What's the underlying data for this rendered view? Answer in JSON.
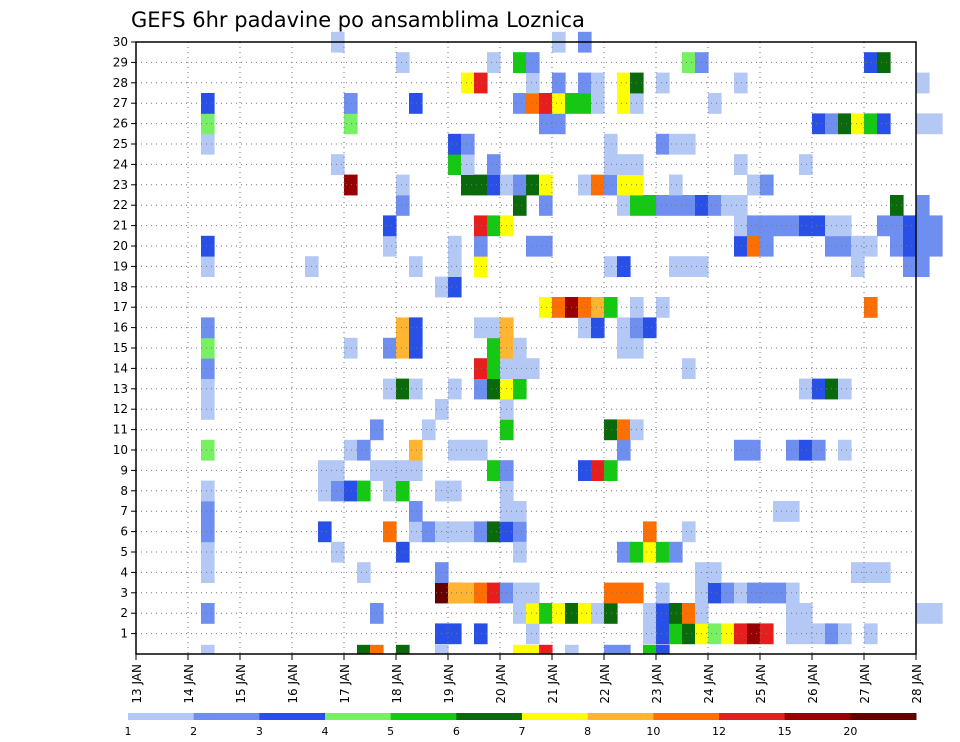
{
  "chart_data": {
    "type": "heatmap",
    "title": "GEFS 6hr padavine po ansamblima Loznica",
    "x_tick_labels": [
      "13 JAN",
      "14 JAN",
      "15 JAN",
      "16 JAN",
      "17 JAN",
      "18 JAN",
      "19 JAN",
      "20 JAN",
      "21 JAN",
      "22 JAN",
      "23 JAN",
      "24 JAN",
      "25 JAN",
      "26 JAN",
      "27 JAN",
      "28 JAN"
    ],
    "x_range_days": [
      13,
      28
    ],
    "y_tick_labels": [
      "1",
      "2",
      "3",
      "4",
      "5",
      "6",
      "7",
      "8",
      "9",
      "10",
      "11",
      "12",
      "13",
      "14",
      "15",
      "16",
      "17",
      "18",
      "19",
      "20",
      "21",
      "22",
      "23",
      "24",
      "25",
      "26",
      "27",
      "28",
      "29",
      "30"
    ],
    "y_range": [
      0,
      30
    ],
    "grid": "dotted",
    "legend_placement": "bottom",
    "legend": {
      "labels": [
        "1",
        "2",
        "3",
        "4",
        "5",
        "6",
        "7",
        "8",
        "10",
        "12",
        "15",
        "20"
      ],
      "colors": [
        "#b4c8f5",
        "#6e8ef0",
        "#2850e6",
        "#78f064",
        "#14c814",
        "#0a690a",
        "#ffff00",
        "#ffb432",
        "#ff6e00",
        "#e61e1e",
        "#960000",
        "#640000"
      ]
    },
    "cells_note": "each cell: [x day at left edge, member row 0-30, category index into legend.colors]",
    "cells": [
      [
        14.25,
        0,
        0
      ],
      [
        14.25,
        2,
        1
      ],
      [
        14.25,
        4,
        0
      ],
      [
        14.25,
        5,
        0
      ],
      [
        14.25,
        6,
        1
      ],
      [
        14.25,
        7,
        1
      ],
      [
        14.25,
        8,
        0
      ],
      [
        14.25,
        10,
        3
      ],
      [
        14.25,
        12,
        0
      ],
      [
        14.25,
        13,
        0
      ],
      [
        14.25,
        14,
        1
      ],
      [
        14.25,
        15,
        3
      ],
      [
        14.25,
        16,
        1
      ],
      [
        14.25,
        19,
        0
      ],
      [
        14.25,
        20,
        2
      ],
      [
        14.25,
        25,
        0
      ],
      [
        14.25,
        26,
        3
      ],
      [
        14.25,
        27,
        2
      ],
      [
        16.25,
        19,
        0
      ],
      [
        16.5,
        6,
        2
      ],
      [
        16.5,
        8,
        0
      ],
      [
        16.5,
        9,
        0
      ],
      [
        16.75,
        5,
        0
      ],
      [
        16.75,
        8,
        1
      ],
      [
        16.75,
        9,
        0
      ],
      [
        16.75,
        24,
        0
      ],
      [
        16.75,
        30,
        0
      ],
      [
        17,
        8,
        2
      ],
      [
        17,
        10,
        0
      ],
      [
        17,
        15,
        0
      ],
      [
        17,
        23,
        10
      ],
      [
        17,
        26,
        3
      ],
      [
        17,
        27,
        1
      ],
      [
        17.25,
        4,
        0
      ],
      [
        17.25,
        8,
        4
      ],
      [
        17.25,
        10,
        1
      ],
      [
        17.25,
        0,
        5
      ],
      [
        17.5,
        0,
        8
      ],
      [
        17.5,
        2,
        1
      ],
      [
        17.5,
        9,
        0
      ],
      [
        17.5,
        11,
        1
      ],
      [
        17.75,
        6,
        8
      ],
      [
        17.75,
        8,
        0
      ],
      [
        17.75,
        9,
        0
      ],
      [
        17.75,
        13,
        0
      ],
      [
        17.75,
        15,
        1
      ],
      [
        17.75,
        20,
        0
      ],
      [
        17.75,
        21,
        2
      ],
      [
        18,
        8,
        4
      ],
      [
        18,
        9,
        0
      ],
      [
        18,
        13,
        5
      ],
      [
        18,
        15,
        7
      ],
      [
        18,
        22,
        1
      ],
      [
        18,
        23,
        0
      ],
      [
        18,
        29,
        0
      ],
      [
        18,
        5,
        2
      ],
      [
        18,
        16,
        7
      ],
      [
        18,
        0,
        5
      ],
      [
        18.25,
        6,
        0
      ],
      [
        18.25,
        7,
        1
      ],
      [
        18.25,
        9,
        0
      ],
      [
        18.25,
        13,
        0
      ],
      [
        18.25,
        15,
        2
      ],
      [
        18.25,
        16,
        2
      ],
      [
        18.25,
        10,
        7
      ],
      [
        18.25,
        19,
        0
      ],
      [
        18.25,
        27,
        2
      ],
      [
        18.5,
        6,
        1
      ],
      [
        18.5,
        11,
        0
      ],
      [
        18.75,
        0,
        0
      ],
      [
        18.75,
        3,
        11
      ],
      [
        18.75,
        4,
        1
      ],
      [
        18.75,
        6,
        0
      ],
      [
        18.75,
        8,
        0
      ],
      [
        18.75,
        12,
        0
      ],
      [
        18.75,
        18,
        0
      ],
      [
        18.75,
        1,
        2
      ],
      [
        19,
        1,
        2
      ],
      [
        19,
        3,
        9
      ],
      [
        19,
        6,
        0
      ],
      [
        19,
        8,
        0
      ],
      [
        19,
        10,
        0
      ],
      [
        19,
        13,
        0
      ],
      [
        19,
        18,
        2
      ],
      [
        19,
        19,
        0
      ],
      [
        19,
        20,
        0
      ],
      [
        19,
        24,
        4
      ],
      [
        19,
        25,
        2
      ],
      [
        19,
        3,
        7
      ],
      [
        19.25,
        3,
        7
      ],
      [
        19.25,
        6,
        0
      ],
      [
        19.25,
        10,
        0
      ],
      [
        19.25,
        23,
        5
      ],
      [
        19.25,
        24,
        0
      ],
      [
        19.25,
        25,
        1
      ],
      [
        19.25,
        28,
        6
      ],
      [
        19.5,
        3,
        8
      ],
      [
        19.5,
        6,
        1
      ],
      [
        19.5,
        10,
        0
      ],
      [
        19.5,
        23,
        5
      ],
      [
        19.5,
        28,
        9
      ],
      [
        19.5,
        1,
        2
      ],
      [
        19.5,
        13,
        1
      ],
      [
        19.5,
        14,
        9
      ],
      [
        19.5,
        16,
        0
      ],
      [
        19.5,
        19,
        6
      ],
      [
        19.5,
        20,
        1
      ],
      [
        19.5,
        21,
        9
      ],
      [
        19.75,
        3,
        9
      ],
      [
        19.75,
        6,
        5
      ],
      [
        19.75,
        9,
        4
      ],
      [
        19.75,
        13,
        5
      ],
      [
        19.75,
        14,
        4
      ],
      [
        19.75,
        15,
        4
      ],
      [
        19.75,
        16,
        0
      ],
      [
        19.75,
        21,
        4
      ],
      [
        19.75,
        23,
        2
      ],
      [
        19.75,
        24,
        1
      ],
      [
        19.75,
        29,
        0
      ],
      [
        20,
        6,
        2
      ],
      [
        20,
        7,
        0
      ],
      [
        20,
        8,
        0
      ],
      [
        20,
        9,
        1
      ],
      [
        20,
        11,
        4
      ],
      [
        20,
        12,
        0
      ],
      [
        20,
        13,
        6
      ],
      [
        20,
        14,
        0
      ],
      [
        20,
        15,
        7
      ],
      [
        20,
        16,
        7
      ],
      [
        20,
        21,
        6
      ],
      [
        20,
        23,
        0
      ],
      [
        20,
        3,
        1
      ],
      [
        20.25,
        3,
        0
      ],
      [
        20.25,
        6,
        1
      ],
      [
        20.25,
        7,
        0
      ],
      [
        20.25,
        13,
        4
      ],
      [
        20.25,
        14,
        0
      ],
      [
        20.25,
        15,
        0
      ],
      [
        20.25,
        22,
        5
      ],
      [
        20.25,
        23,
        1
      ],
      [
        20.25,
        27,
        1
      ],
      [
        20.25,
        29,
        4
      ],
      [
        20.25,
        0,
        6
      ],
      [
        20.25,
        5,
        0
      ],
      [
        20.25,
        2,
        0
      ],
      [
        20.5,
        0,
        6
      ],
      [
        20.5,
        1,
        0
      ],
      [
        20.5,
        2,
        6
      ],
      [
        20.5,
        3,
        0
      ],
      [
        20.5,
        20,
        1
      ],
      [
        20.5,
        23,
        5
      ],
      [
        20.5,
        27,
        8
      ],
      [
        20.5,
        28,
        0
      ],
      [
        20.5,
        29,
        1
      ],
      [
        20.5,
        14,
        0
      ],
      [
        20.75,
        0,
        9
      ],
      [
        20.75,
        2,
        4
      ],
      [
        20.75,
        17,
        6
      ],
      [
        20.75,
        20,
        1
      ],
      [
        20.75,
        22,
        1
      ],
      [
        20.75,
        23,
        6
      ],
      [
        20.75,
        26,
        1
      ],
      [
        20.75,
        27,
        9
      ],
      [
        21,
        2,
        6
      ],
      [
        21,
        17,
        8
      ],
      [
        21,
        26,
        1
      ],
      [
        21,
        27,
        6
      ],
      [
        21,
        28,
        1
      ],
      [
        21,
        30,
        0
      ],
      [
        21.25,
        2,
        5
      ],
      [
        21.25,
        17,
        10
      ],
      [
        21.25,
        27,
        4
      ],
      [
        21.25,
        0,
        0
      ],
      [
        21.5,
        2,
        6
      ],
      [
        21.5,
        9,
        2
      ],
      [
        21.5,
        16,
        0
      ],
      [
        21.5,
        17,
        8
      ],
      [
        21.5,
        23,
        0
      ],
      [
        21.5,
        27,
        4
      ],
      [
        21.5,
        28,
        1
      ],
      [
        21.5,
        30,
        1
      ],
      [
        21.75,
        2,
        0
      ],
      [
        21.75,
        9,
        9
      ],
      [
        21.75,
        16,
        2
      ],
      [
        21.75,
        17,
        7
      ],
      [
        21.75,
        23,
        8
      ],
      [
        21.75,
        27,
        0
      ],
      [
        21.75,
        28,
        0
      ],
      [
        22,
        2,
        5
      ],
      [
        22,
        3,
        8
      ],
      [
        22,
        9,
        4
      ],
      [
        22,
        11,
        5
      ],
      [
        22,
        17,
        4
      ],
      [
        22,
        19,
        0
      ],
      [
        22,
        23,
        1
      ],
      [
        22,
        24,
        0
      ],
      [
        22,
        25,
        0
      ],
      [
        22,
        0,
        1
      ],
      [
        22.25,
        3,
        8
      ],
      [
        22.25,
        5,
        1
      ],
      [
        22.25,
        10,
        1
      ],
      [
        22.25,
        11,
        8
      ],
      [
        22.25,
        15,
        0
      ],
      [
        22.25,
        16,
        0
      ],
      [
        22.25,
        19,
        2
      ],
      [
        22.25,
        22,
        0
      ],
      [
        22.25,
        23,
        6
      ],
      [
        22.25,
        24,
        0
      ],
      [
        22.25,
        27,
        6
      ],
      [
        22.25,
        28,
        6
      ],
      [
        22.25,
        0,
        1
      ],
      [
        22.5,
        3,
        8
      ],
      [
        22.5,
        5,
        4
      ],
      [
        22.5,
        11,
        0
      ],
      [
        22.5,
        15,
        0
      ],
      [
        22.5,
        16,
        1
      ],
      [
        22.5,
        17,
        0
      ],
      [
        22.5,
        22,
        4
      ],
      [
        22.5,
        23,
        6
      ],
      [
        22.5,
        24,
        0
      ],
      [
        22.5,
        27,
        0
      ],
      [
        22.5,
        28,
        5
      ],
      [
        22.75,
        5,
        6
      ],
      [
        22.75,
        6,
        8
      ],
      [
        22.75,
        16,
        2
      ],
      [
        22.75,
        22,
        4
      ],
      [
        22.75,
        0,
        4
      ],
      [
        22.75,
        1,
        0
      ],
      [
        22.75,
        2,
        0
      ],
      [
        23,
        1,
        2
      ],
      [
        23,
        2,
        2
      ],
      [
        23,
        3,
        0
      ],
      [
        23,
        5,
        4
      ],
      [
        23,
        17,
        0
      ],
      [
        23,
        22,
        1
      ],
      [
        23,
        25,
        1
      ],
      [
        23,
        28,
        0
      ],
      [
        23,
        0,
        1
      ],
      [
        23,
        0,
        2
      ],
      [
        23.25,
        1,
        4
      ],
      [
        23.25,
        2,
        5
      ],
      [
        23.25,
        5,
        1
      ],
      [
        23.25,
        19,
        0
      ],
      [
        23.25,
        22,
        1
      ],
      [
        23.25,
        23,
        0
      ],
      [
        23.25,
        25,
        0
      ],
      [
        23.5,
        1,
        5
      ],
      [
        23.5,
        2,
        8
      ],
      [
        23.5,
        6,
        0
      ],
      [
        23.5,
        14,
        0
      ],
      [
        23.5,
        19,
        0
      ],
      [
        23.5,
        22,
        1
      ],
      [
        23.5,
        25,
        0
      ],
      [
        23.5,
        29,
        3
      ],
      [
        23.75,
        1,
        6
      ],
      [
        23.75,
        2,
        0
      ],
      [
        23.75,
        3,
        0
      ],
      [
        23.75,
        4,
        0
      ],
      [
        23.75,
        19,
        0
      ],
      [
        23.75,
        22,
        2
      ],
      [
        23.75,
        29,
        1
      ],
      [
        24,
        1,
        3
      ],
      [
        24,
        3,
        2
      ],
      [
        24,
        4,
        0
      ],
      [
        24,
        22,
        1
      ],
      [
        24,
        27,
        0
      ],
      [
        24.25,
        1,
        6
      ],
      [
        24.25,
        3,
        1
      ],
      [
        24.25,
        22,
        0
      ],
      [
        24.5,
        1,
        9
      ],
      [
        24.5,
        3,
        0
      ],
      [
        24.5,
        10,
        1
      ],
      [
        24.5,
        20,
        2
      ],
      [
        24.5,
        21,
        0
      ],
      [
        24.5,
        22,
        0
      ],
      [
        24.5,
        24,
        0
      ],
      [
        24.5,
        28,
        0
      ],
      [
        24.75,
        1,
        10
      ],
      [
        24.75,
        3,
        1
      ],
      [
        24.75,
        10,
        1
      ],
      [
        24.75,
        20,
        8
      ],
      [
        24.75,
        21,
        1
      ],
      [
        24.75,
        23,
        0
      ],
      [
        25,
        1,
        9
      ],
      [
        25,
        3,
        1
      ],
      [
        25,
        20,
        1
      ],
      [
        25,
        21,
        1
      ],
      [
        25,
        23,
        1
      ],
      [
        25.25,
        3,
        1
      ],
      [
        25.25,
        7,
        0
      ],
      [
        25.25,
        21,
        1
      ],
      [
        25.5,
        1,
        0
      ],
      [
        25.5,
        2,
        0
      ],
      [
        25.5,
        3,
        0
      ],
      [
        25.5,
        7,
        0
      ],
      [
        25.5,
        10,
        1
      ],
      [
        25.5,
        21,
        1
      ],
      [
        25.75,
        1,
        0
      ],
      [
        25.75,
        2,
        0
      ],
      [
        25.75,
        10,
        2
      ],
      [
        25.75,
        13,
        0
      ],
      [
        25.75,
        21,
        2
      ],
      [
        25.75,
        24,
        0
      ],
      [
        26,
        1,
        0
      ],
      [
        26,
        10,
        1
      ],
      [
        26,
        13,
        2
      ],
      [
        26,
        21,
        2
      ],
      [
        26,
        26,
        2
      ],
      [
        26.25,
        1,
        1
      ],
      [
        26.25,
        13,
        5
      ],
      [
        26.25,
        20,
        1
      ],
      [
        26.25,
        21,
        0
      ],
      [
        26.25,
        26,
        1
      ],
      [
        26.5,
        1,
        0
      ],
      [
        26.5,
        10,
        0
      ],
      [
        26.5,
        13,
        0
      ],
      [
        26.5,
        20,
        1
      ],
      [
        26.5,
        21,
        0
      ],
      [
        26.5,
        26,
        5
      ],
      [
        26.75,
        4,
        0
      ],
      [
        26.75,
        19,
        0
      ],
      [
        26.75,
        20,
        0
      ],
      [
        26.75,
        26,
        6
      ],
      [
        27,
        1,
        0
      ],
      [
        27,
        4,
        0
      ],
      [
        27,
        17,
        8
      ],
      [
        27,
        20,
        0
      ],
      [
        27,
        26,
        4
      ],
      [
        27,
        29,
        2
      ],
      [
        27.25,
        26,
        2
      ],
      [
        27.25,
        29,
        5
      ],
      [
        27.25,
        4,
        0
      ],
      [
        27.25,
        21,
        1
      ],
      [
        27.5,
        20,
        1
      ],
      [
        27.5,
        21,
        1
      ],
      [
        27.5,
        22,
        5
      ],
      [
        27.75,
        19,
        1
      ],
      [
        27.75,
        20,
        2
      ],
      [
        27.75,
        21,
        2
      ],
      [
        28,
        2,
        0
      ],
      [
        28,
        19,
        1
      ],
      [
        28,
        20,
        1
      ],
      [
        28,
        21,
        1
      ],
      [
        28,
        22,
        1
      ],
      [
        28,
        26,
        0
      ],
      [
        28,
        28,
        0
      ],
      [
        28.25,
        2,
        0
      ],
      [
        28.25,
        20,
        1
      ],
      [
        28.25,
        21,
        1
      ],
      [
        28.25,
        26,
        0
      ]
    ]
  }
}
